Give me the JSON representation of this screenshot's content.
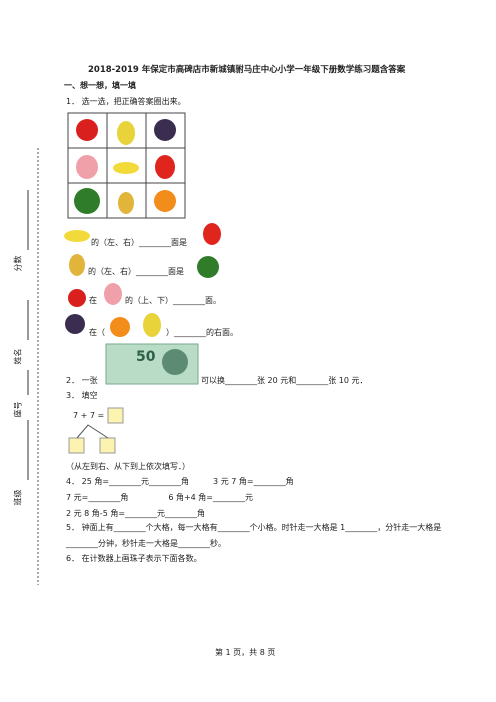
{
  "header": {
    "title": "2018-2019 年保定市高碑店市新城镇驸马庄中心小学一年级下册数学练习题含答案"
  },
  "section": "一、想一想，填一填",
  "q1": {
    "text": "1． 选一选，把正确答案圈出来。",
    "lines": [
      "的（左、右）________面是",
      "的（左、右）________面是",
      "在",
      "的（上、下）________面。",
      "在（",
      "）________的右面。"
    ]
  },
  "q2": {
    "before": "2． 一张",
    "note": "50",
    "after": "可以换________张 20 元和________张 10 元．"
  },
  "q3": {
    "text": "3． 填空",
    "equation": "7 + 7 =",
    "note": "（从左到右、从下到上依次填写．）"
  },
  "q4": {
    "lines": [
      "4． 25 角=________元________角　　　3 元 7 角=________角",
      "7 元=________角　　　　　6 角+4 角=________元",
      "2 元 8 角-5 角=________元________角"
    ]
  },
  "q5": {
    "lines": [
      "5． 钟面上有________个大格，每一大格有________个小格。时针走一大格是 1________，分针走一大格是",
      "________分钟，秒针走一大格是________秒。"
    ]
  },
  "q6": {
    "text": "6． 在计数器上画珠子表示下面各数。"
  },
  "side": {
    "score": "分数",
    "name": "姓名",
    "seat": "座号",
    "class": "班级"
  },
  "footer": "第 1 页，共 8 页"
}
